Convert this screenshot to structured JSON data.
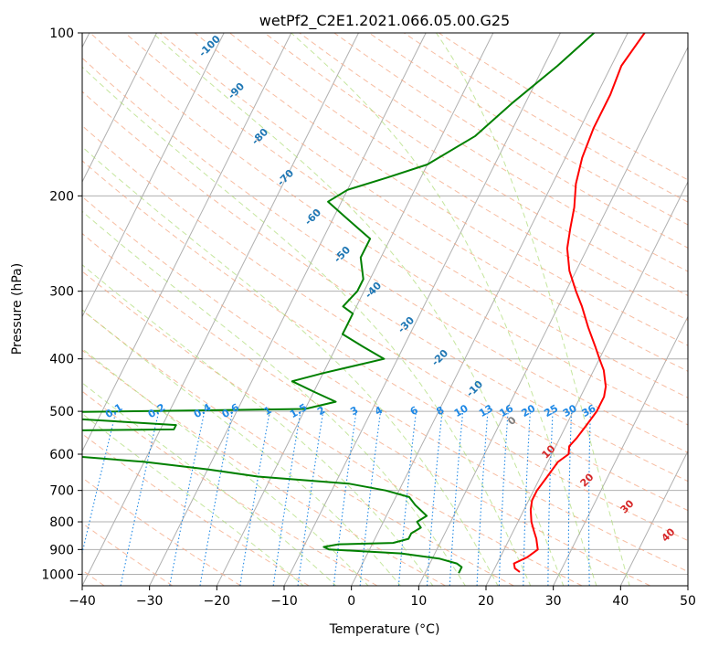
{
  "chart_data": {
    "type": "skew-t",
    "title": "wetPf2_C2E1.2021.066.05.00.G25",
    "xlabel": "Temperature (°C)",
    "ylabel": "Pressure (hPa)",
    "xlim": [
      -40,
      50
    ],
    "ylim": [
      1050,
      100
    ],
    "y_scale": "log",
    "x_ticks": [
      "−40",
      "−30",
      "−20",
      "−10",
      "0",
      "10",
      "20",
      "30",
      "40",
      "50"
    ],
    "x_tick_values": [
      -40,
      -30,
      -20,
      -10,
      0,
      10,
      20,
      30,
      40,
      50
    ],
    "y_ticks": [
      "100",
      "200",
      "300",
      "400",
      "500",
      "600",
      "700",
      "800",
      "900",
      "1000"
    ],
    "y_tick_values": [
      100,
      200,
      300,
      400,
      500,
      600,
      700,
      800,
      900,
      1000
    ],
    "grid": true,
    "colors": {
      "temperature": "#ff0000",
      "dewpoint": "#008000",
      "isotherm": "#b0b0b0",
      "dry_adiabat": "#f4a582",
      "moist_adiabat": "#a6d96a",
      "mixing_ratio": "#1e88e5",
      "annotation_blue": "#1f77b4",
      "annotation_red": "#d62728"
    },
    "series": [
      {
        "key": "temperature",
        "points": [
          [
            24,
            990
          ],
          [
            23,
            975
          ],
          [
            22.5,
            955
          ],
          [
            24,
            930
          ],
          [
            25,
            900
          ],
          [
            24.5,
            880
          ],
          [
            24,
            860
          ],
          [
            23,
            830
          ],
          [
            22,
            800
          ],
          [
            21,
            760
          ],
          [
            20.5,
            730
          ],
          [
            20.5,
            700
          ],
          [
            21,
            660
          ],
          [
            21.5,
            620
          ],
          [
            22.5,
            600
          ],
          [
            22,
            580
          ],
          [
            22.5,
            560
          ],
          [
            23,
            530
          ],
          [
            23.5,
            500
          ],
          [
            23.5,
            470
          ],
          [
            23,
            450
          ],
          [
            21.5,
            420
          ],
          [
            20,
            400
          ],
          [
            18.5,
            380
          ],
          [
            16,
            350
          ],
          [
            13.5,
            320
          ],
          [
            11.5,
            300
          ],
          [
            9,
            275
          ],
          [
            7,
            250
          ],
          [
            6,
            230
          ],
          [
            5,
            210
          ],
          [
            3.5,
            190
          ],
          [
            2.5,
            170
          ],
          [
            2,
            150
          ],
          [
            2,
            130
          ],
          [
            1.5,
            115
          ],
          [
            2.5,
            100
          ]
        ]
      },
      {
        "key": "dewpoint",
        "points": [
          [
            15,
            995
          ],
          [
            15,
            970
          ],
          [
            14,
            955
          ],
          [
            11,
            935
          ],
          [
            5,
            915
          ],
          [
            -6,
            900
          ],
          [
            -7,
            890
          ],
          [
            -5,
            880
          ],
          [
            3,
            875
          ],
          [
            5,
            860
          ],
          [
            5,
            840
          ],
          [
            6,
            820
          ],
          [
            5,
            800
          ],
          [
            6,
            780
          ],
          [
            3.5,
            745
          ],
          [
            2,
            720
          ],
          [
            -2,
            700
          ],
          [
            -8,
            680
          ],
          [
            -22,
            660
          ],
          [
            -30,
            640
          ],
          [
            -40,
            620
          ],
          [
            -55,
            600
          ],
          [
            -57,
            590
          ],
          [
            -60,
            575
          ],
          [
            -70,
            555
          ],
          [
            -70,
            545
          ],
          [
            -38,
            540
          ],
          [
            -38,
            530
          ],
          [
            -55,
            515
          ],
          [
            -72,
            505
          ],
          [
            -20,
            495
          ],
          [
            -16,
            480
          ],
          [
            -20,
            460
          ],
          [
            -24,
            440
          ],
          [
            -20,
            425
          ],
          [
            -12,
            400
          ],
          [
            -16,
            380
          ],
          [
            -20,
            360
          ],
          [
            -20,
            350
          ],
          [
            -20,
            330
          ],
          [
            -22,
            320
          ],
          [
            -21,
            300
          ],
          [
            -21,
            285
          ],
          [
            -23,
            260
          ],
          [
            -23,
            240
          ],
          [
            -28,
            220
          ],
          [
            -32,
            205
          ],
          [
            -30,
            195
          ],
          [
            -25,
            185
          ],
          [
            -20,
            175
          ],
          [
            -15,
            155
          ],
          [
            -12,
            135
          ],
          [
            -8,
            115
          ],
          [
            -5,
            100
          ]
        ]
      }
    ],
    "mixing_ratio_labels": [
      "0.1",
      "0.2",
      "0.4",
      "0.6",
      "1",
      "1.5",
      "2",
      "3",
      "4",
      "6",
      "8",
      "10",
      "13",
      "16",
      "20",
      "25",
      "30",
      "36"
    ],
    "mixing_ratio_values": [
      0.1,
      0.2,
      0.4,
      0.6,
      1,
      1.5,
      2,
      3,
      4,
      6,
      8,
      10,
      13,
      16,
      20,
      25,
      30,
      36
    ],
    "isotherm_labels": [
      "-100",
      "-90",
      "-80",
      "-70",
      "-60",
      "-50",
      "-40",
      "-30",
      "-20",
      "-10",
      "0",
      "10",
      "20",
      "30",
      "40"
    ],
    "isotherm_values": [
      -100,
      -90,
      -80,
      -70,
      -60,
      -50,
      -40,
      -30,
      -20,
      -10,
      0,
      10,
      20,
      30,
      40
    ]
  }
}
